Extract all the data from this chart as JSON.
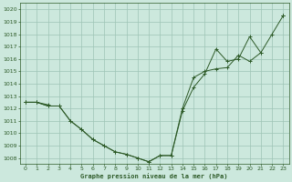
{
  "title": "Graphe pression niveau de la mer (hPa)",
  "bg_color": "#cce8dd",
  "grid_color": "#9dc4b5",
  "line_color": "#2d5a27",
  "marker": "+",
  "x_ticks": [
    0,
    1,
    2,
    3,
    4,
    5,
    6,
    7,
    8,
    9,
    10,
    11,
    12,
    13,
    14,
    15,
    16,
    17,
    18,
    19,
    20,
    21,
    22,
    23
  ],
  "ylim": [
    1007.5,
    1020.5
  ],
  "xlim": [
    -0.5,
    23.5
  ],
  "yticks": [
    1008,
    1009,
    1010,
    1011,
    1012,
    1013,
    1014,
    1015,
    1016,
    1017,
    1018,
    1019,
    1020
  ],
  "series": [
    [
      1012.5,
      1012.5,
      1012.3,
      null,
      null,
      null,
      null,
      null,
      null,
      null,
      null,
      null,
      null,
      null,
      null,
      null,
      null,
      null,
      null,
      null,
      null,
      null,
      null,
      1019.5
    ],
    [
      1012.5,
      1012.5,
      1012.2,
      1012.2,
      1011.0,
      1010.3,
      1009.5,
      1009.0,
      1008.5,
      1008.3,
      1008.0,
      1007.7,
      1008.2,
      1008.2,
      1011.8,
      1013.7,
      1014.8,
      1016.8,
      1015.8,
      1016.0,
      1017.8,
      1016.5,
      1018.0,
      1019.5
    ],
    [
      1012.5,
      1012.5,
      1012.2,
      1012.2,
      1011.0,
      1010.3,
      1009.5,
      1009.0,
      1008.5,
      1008.3,
      1008.0,
      1007.7,
      1008.2,
      1008.2,
      1012.0,
      1014.5,
      1015.0,
      1015.2,
      1015.3,
      1016.3,
      1015.8,
      1016.5,
      null,
      1019.5
    ]
  ]
}
